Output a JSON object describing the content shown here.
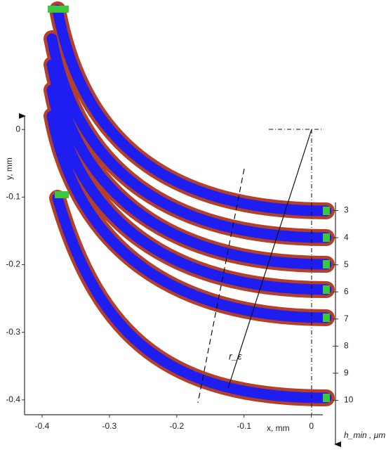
{
  "chart_data": {
    "type": "bands",
    "x_label": "x, mm",
    "y_label": "y, mm",
    "y2_label": "h_min , μm",
    "annotation": "r_ε",
    "xlim": [
      -0.426,
      0.017
    ],
    "xticks": [
      -0.4,
      -0.3,
      -0.2,
      -0.1,
      0
    ],
    "ylim": [
      -0.422,
      0.02
    ],
    "yticks": [
      -0.4,
      -0.3,
      -0.2,
      -0.1,
      0
    ],
    "y2lim": [
      2.7,
      11.7
    ],
    "y2ticks": [
      3,
      4,
      5,
      6,
      7,
      8,
      9,
      10
    ]
  }
}
